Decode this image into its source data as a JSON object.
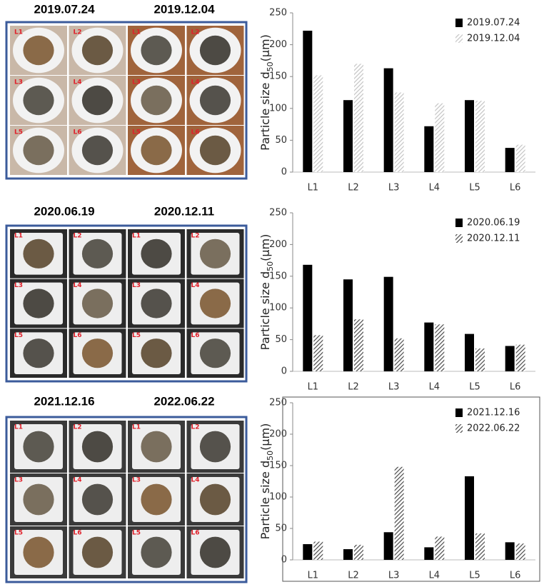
{
  "chart_data": [
    {
      "type": "bar",
      "ylabel": {
        "main": "Particle size d",
        "sub": "50",
        "unit": "(μm)"
      },
      "categories": [
        "L1",
        "L2",
        "L3",
        "L4",
        "L5",
        "L6"
      ],
      "series": [
        {
          "name": "2019.07.24",
          "color": "#000000",
          "values": [
            222,
            113,
            163,
            72,
            113,
            38
          ]
        },
        {
          "name": "2019.12.04",
          "color": "#c4c4c4",
          "hatch": true,
          "values": [
            152,
            170,
            125,
            108,
            112,
            43
          ]
        }
      ],
      "ylim": [
        0,
        250
      ],
      "yticks": [
        0,
        50,
        100,
        150,
        200,
        250
      ],
      "legend": "upper right",
      "frame": false
    },
    {
      "type": "bar",
      "ylabel": {
        "main": "Particle size d",
        "sub": "50",
        "unit": "(μm)"
      },
      "categories": [
        "L1",
        "L2",
        "L3",
        "L4",
        "L5",
        "L6"
      ],
      "series": [
        {
          "name": "2020.06.19",
          "color": "#000000",
          "values": [
            168,
            145,
            149,
            77,
            59,
            40
          ]
        },
        {
          "name": "2020.12.11",
          "color": "#4a4a4a",
          "hatch": true,
          "values": [
            57,
            82,
            52,
            74,
            36,
            42
          ]
        }
      ],
      "ylim": [
        0,
        250
      ],
      "yticks": [
        0,
        50,
        100,
        150,
        200,
        250
      ],
      "legend": "upper right",
      "frame": false
    },
    {
      "type": "bar",
      "ylabel": {
        "main": "Particle size d",
        "sub": "50",
        "unit": "(μm)"
      },
      "categories": [
        "L1",
        "L2",
        "L3",
        "L4",
        "L5",
        "L6"
      ],
      "series": [
        {
          "name": "2021.12.16",
          "color": "#000000",
          "values": [
            25,
            17,
            44,
            20,
            133,
            28
          ]
        },
        {
          "name": "2022.06.22",
          "color": "#4a4a4a",
          "hatch": true,
          "values": [
            29,
            24,
            148,
            37,
            42,
            26
          ]
        }
      ],
      "ylim": [
        0,
        250
      ],
      "yticks": [
        0,
        50,
        100,
        150,
        200,
        250
      ],
      "legend": "upper right",
      "frame": true
    }
  ],
  "photo_panels": [
    {
      "groups": [
        {
          "date": "2019.07.24",
          "samples": [
            "L1",
            "L2",
            "L3",
            "L4",
            "L5",
            "L6"
          ]
        },
        {
          "date": "2019.12.04",
          "samples": [
            "L1",
            "L2",
            "L3",
            "L4",
            "L5",
            "L6"
          ]
        }
      ]
    },
    {
      "groups": [
        {
          "date": "2020.06.19",
          "samples": [
            "L1",
            "L2",
            "L3",
            "L4",
            "L5",
            "L6"
          ]
        },
        {
          "date": "2020.12.11",
          "samples": [
            "L1",
            "L2",
            "L3",
            "L4",
            "L5",
            "L6"
          ]
        }
      ]
    },
    {
      "groups": [
        {
          "date": "2021.12.16",
          "samples": [
            "L1",
            "L2",
            "L3",
            "L4",
            "L5",
            "L6"
          ]
        },
        {
          "date": "2022.06.22",
          "samples": [
            "L1",
            "L2",
            "L3",
            "L4",
            "L5",
            "L6"
          ]
        }
      ]
    }
  ]
}
